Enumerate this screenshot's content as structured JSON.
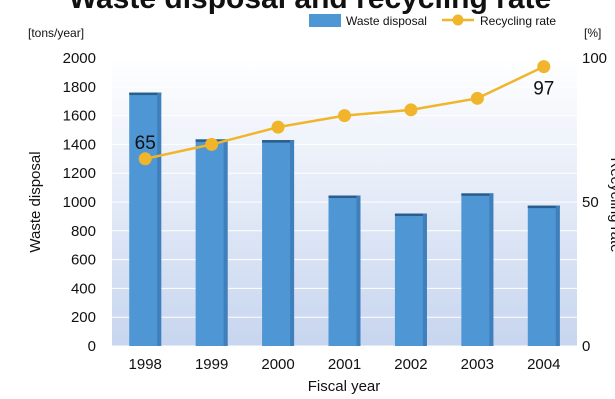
{
  "chart_data": {
    "type": "bar",
    "title_fragment": "Waste disposal and recycling rate",
    "categories": [
      "1998",
      "1999",
      "2000",
      "2001",
      "2002",
      "2003",
      "2004"
    ],
    "series": [
      {
        "name": "Waste disposal",
        "type": "bar",
        "axis": "left",
        "color": "#4f96d4",
        "values": [
          1760,
          1435,
          1430,
          1045,
          920,
          1060,
          975
        ]
      },
      {
        "name": "Recycling rate",
        "type": "line",
        "axis": "right",
        "color": "#f0b52a",
        "values": [
          65,
          70,
          76,
          80,
          82,
          86,
          97
        ]
      }
    ],
    "data_labels": [
      {
        "series": 1,
        "index": 0,
        "text": "65"
      },
      {
        "series": 1,
        "index": 6,
        "text": "97"
      }
    ],
    "xlabel": "Fiscal year",
    "ylabel_left": "Waste disposal",
    "ylabel_right": "Recycling rate",
    "unit_left": "[tons/year]",
    "unit_right": "[%]",
    "ylim_left": [
      0,
      2000
    ],
    "yticks_left": [
      "0",
      "200",
      "400",
      "600",
      "800",
      "1000",
      "1200",
      "1400",
      "1600",
      "1800",
      "2000"
    ],
    "ylim_right": [
      0,
      100
    ],
    "yticks_right": [
      "0",
      "50",
      "100"
    ],
    "legend_position": "top-right",
    "grid": true
  }
}
